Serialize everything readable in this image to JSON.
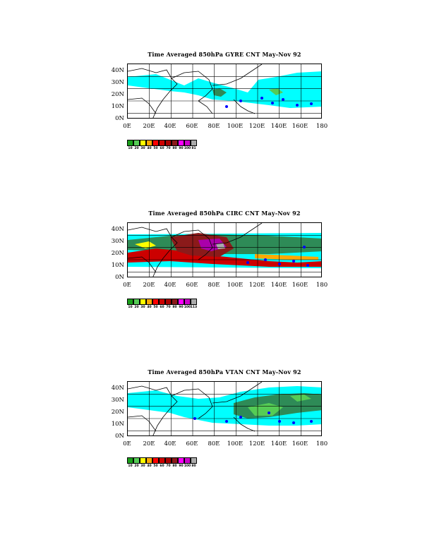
{
  "page": {
    "background": "#ffffff"
  },
  "colors": {
    "ocean": "#00ffff",
    "dark_green": "#2e8b57",
    "light_green": "#55cc55",
    "blue_cyclone": "#0000ff",
    "coast": "#000000"
  },
  "legend_colors": [
    "#1aa01a",
    "#55cc55",
    "#ffff00",
    "#ffaa00",
    "#ff0000",
    "#cc0000",
    "#aa0000",
    "#8b1a1a",
    "#ff00ff",
    "#cc00cc",
    "#aaaaaa"
  ],
  "panels": [
    {
      "id": "gyre",
      "title": "Time Averaged 850hPa GYRE CNT May-Nov 92",
      "y_ticks": [
        "40N",
        "30N",
        "20N",
        "10N",
        "0N"
      ],
      "x_ticks": [
        "0E",
        "20E",
        "40E",
        "60E",
        "80E",
        "100E",
        "120E",
        "140E",
        "160E",
        "180"
      ],
      "legend_labels": [
        "10",
        "20",
        "30",
        "40",
        "50",
        "60",
        "70",
        "80",
        "90",
        "100",
        "81"
      ]
    },
    {
      "id": "circ",
      "title": "Time Averaged 850hPa CIRC CNT May-Nov 92",
      "y_ticks": [
        "40N",
        "30N",
        "20N",
        "10N",
        "0N"
      ],
      "x_ticks": [
        "0E",
        "20E",
        "40E",
        "60E",
        "80E",
        "100E",
        "120E",
        "140E",
        "160E",
        "180"
      ],
      "legend_labels": [
        "10",
        "20",
        "30",
        "40",
        "50",
        "60",
        "70",
        "80",
        "90",
        "100",
        "113"
      ]
    },
    {
      "id": "vtan",
      "title": "Time Averaged 850hPa VTAN CNT May-Nov 92",
      "y_ticks": [
        "40N",
        "30N",
        "20N",
        "10N",
        "0N"
      ],
      "x_ticks": [
        "0E",
        "20E",
        "40E",
        "60E",
        "80E",
        "100E",
        "120E",
        "140E",
        "160E",
        "180"
      ],
      "legend_labels": [
        "10",
        "20",
        "30",
        "40",
        "50",
        "60",
        "70",
        "80",
        "90",
        "100",
        "80"
      ]
    }
  ],
  "chart_data": [
    {
      "type": "heatmap",
      "title": "Time Averaged 850hPa GYRE CNT May-Nov 92",
      "xlabel": "",
      "ylabel": "",
      "xlim": [
        0,
        180
      ],
      "ylim": [
        0,
        45
      ],
      "x_ticks": [
        "0E",
        "20E",
        "40E",
        "60E",
        "80E",
        "100E",
        "120E",
        "140E",
        "160E",
        "180"
      ],
      "y_ticks": [
        "0N",
        "10N",
        "20N",
        "30N",
        "40N"
      ],
      "legend_levels": [
        "10",
        "20",
        "30",
        "40",
        "50",
        "60",
        "70",
        "80",
        "90",
        "100",
        "81"
      ]
    },
    {
      "type": "heatmap",
      "title": "Time Averaged 850hPa CIRC CNT May-Nov 92",
      "xlabel": "",
      "ylabel": "",
      "xlim": [
        0,
        180
      ],
      "ylim": [
        0,
        45
      ],
      "x_ticks": [
        "0E",
        "20E",
        "40E",
        "60E",
        "80E",
        "100E",
        "120E",
        "140E",
        "160E",
        "180"
      ],
      "y_ticks": [
        "0N",
        "10N",
        "20N",
        "30N",
        "40N"
      ],
      "legend_levels": [
        "10",
        "20",
        "30",
        "40",
        "50",
        "60",
        "70",
        "80",
        "90",
        "100",
        "113"
      ]
    },
    {
      "type": "heatmap",
      "title": "Time Averaged 850hPa VTAN CNT May-Nov 92",
      "xlabel": "",
      "ylabel": "",
      "xlim": [
        0,
        180
      ],
      "ylim": [
        0,
        45
      ],
      "x_ticks": [
        "0E",
        "20E",
        "40E",
        "60E",
        "80E",
        "100E",
        "120E",
        "140E",
        "160E",
        "180"
      ],
      "y_ticks": [
        "0N",
        "10N",
        "20N",
        "30N",
        "40N"
      ],
      "legend_levels": [
        "10",
        "20",
        "30",
        "40",
        "50",
        "60",
        "70",
        "80",
        "90",
        "100",
        "80"
      ]
    }
  ]
}
